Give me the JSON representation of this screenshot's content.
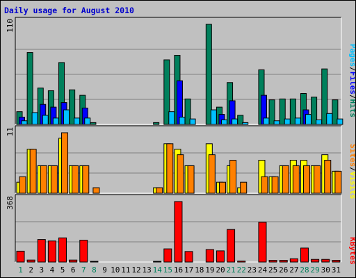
{
  "title": {
    "text": "Daily usage for August 2010",
    "color": "#0000cc"
  },
  "colors": {
    "hits": "#00805c",
    "files": "#0000ff",
    "pages": "#00c0ff",
    "visits": "#ffff00",
    "sites": "#ff8000",
    "kbytes": "#ff0000",
    "weekend_label": "#00805c",
    "weekday_label": "#000000",
    "plot_bg": "#c0c0c0"
  },
  "right_labels": {
    "top": [
      {
        "text": "Pages",
        "color": "#00c0ff"
      },
      {
        "text": "/",
        "color": "#000000"
      },
      {
        "text": "Files",
        "color": "#0000ff"
      },
      {
        "text": "/",
        "color": "#000000"
      },
      {
        "text": "Hits",
        "color": "#00805c"
      }
    ],
    "middle": [
      {
        "text": "Sites",
        "color": "#ff8000"
      },
      {
        "text": "/",
        "color": "#000000"
      },
      {
        "text": "Visits",
        "color": "#ffff00"
      }
    ],
    "bottom": [
      {
        "text": "KBytes",
        "color": "#ff0000"
      }
    ]
  },
  "chart_data": [
    {
      "type": "bar",
      "panel": "top",
      "max_label": "110",
      "ylim": [
        0,
        110
      ],
      "categories": [
        "1",
        "2",
        "3",
        "4",
        "5",
        "6",
        "7",
        "8",
        "9",
        "10",
        "11",
        "12",
        "13",
        "14",
        "15",
        "16",
        "17",
        "18",
        "19",
        "20",
        "21",
        "22",
        "23",
        "24",
        "25",
        "26",
        "27",
        "28",
        "29",
        "30",
        "31"
      ],
      "series": [
        {
          "name": "Hits",
          "values": [
            14,
            79,
            40,
            37,
            68,
            38,
            32,
            2,
            0,
            0,
            0,
            0,
            0,
            2,
            71,
            76,
            28,
            0,
            110,
            19,
            46,
            10,
            0,
            60,
            27,
            28,
            28,
            34,
            30,
            61,
            27
          ]
        },
        {
          "name": "Files",
          "values": [
            8,
            0,
            22,
            19,
            24,
            0,
            18,
            0,
            0,
            0,
            0,
            0,
            0,
            0,
            0,
            48,
            0,
            0,
            0,
            11,
            26,
            0,
            0,
            32,
            0,
            0,
            0,
            16,
            0,
            0,
            0
          ]
        },
        {
          "name": "Pages",
          "values": [
            4,
            13,
            10,
            7,
            16,
            7,
            7,
            0,
            0,
            0,
            0,
            0,
            0,
            0,
            14,
            8,
            6,
            0,
            16,
            5,
            6,
            2,
            0,
            7,
            4,
            6,
            7,
            11,
            5,
            12,
            6
          ]
        }
      ]
    },
    {
      "type": "bar",
      "panel": "middle",
      "max_label": "11",
      "ylim": [
        0,
        11
      ],
      "categories": [
        "1",
        "2",
        "3",
        "4",
        "5",
        "6",
        "7",
        "8",
        "9",
        "10",
        "11",
        "12",
        "13",
        "14",
        "15",
        "16",
        "17",
        "18",
        "19",
        "20",
        "21",
        "22",
        "23",
        "24",
        "25",
        "26",
        "27",
        "28",
        "29",
        "30",
        "31"
      ],
      "series": [
        {
          "name": "Visits",
          "values": [
            2,
            8,
            5,
            5,
            10,
            5,
            5,
            0,
            0,
            0,
            0,
            0,
            0,
            1,
            9,
            8,
            5,
            0,
            9,
            2,
            5,
            1,
            0,
            6,
            3,
            5,
            6,
            6,
            5,
            7,
            4
          ]
        },
        {
          "name": "Sites",
          "values": [
            3,
            8,
            5,
            5,
            11,
            5,
            5,
            1,
            0,
            0,
            0,
            0,
            0,
            1,
            9,
            7,
            5,
            0,
            7,
            2,
            6,
            2,
            0,
            3,
            3,
            5,
            5,
            5,
            5,
            6,
            4
          ]
        }
      ]
    },
    {
      "type": "bar",
      "panel": "bottom",
      "max_label": "368",
      "ylim": [
        0,
        368
      ],
      "categories": [
        "1",
        "2",
        "3",
        "4",
        "5",
        "6",
        "7",
        "8",
        "9",
        "10",
        "11",
        "12",
        "13",
        "14",
        "15",
        "16",
        "17",
        "18",
        "19",
        "20",
        "21",
        "22",
        "23",
        "24",
        "25",
        "26",
        "27",
        "28",
        "29",
        "30",
        "31"
      ],
      "series": [
        {
          "name": "KBytes",
          "values": [
            66,
            12,
            137,
            128,
            147,
            12,
            133,
            4,
            0,
            0,
            0,
            0,
            0,
            4,
            80,
            368,
            64,
            0,
            76,
            68,
            198,
            6,
            0,
            242,
            10,
            10,
            20,
            85,
            16,
            16,
            10
          ]
        }
      ]
    }
  ]
}
